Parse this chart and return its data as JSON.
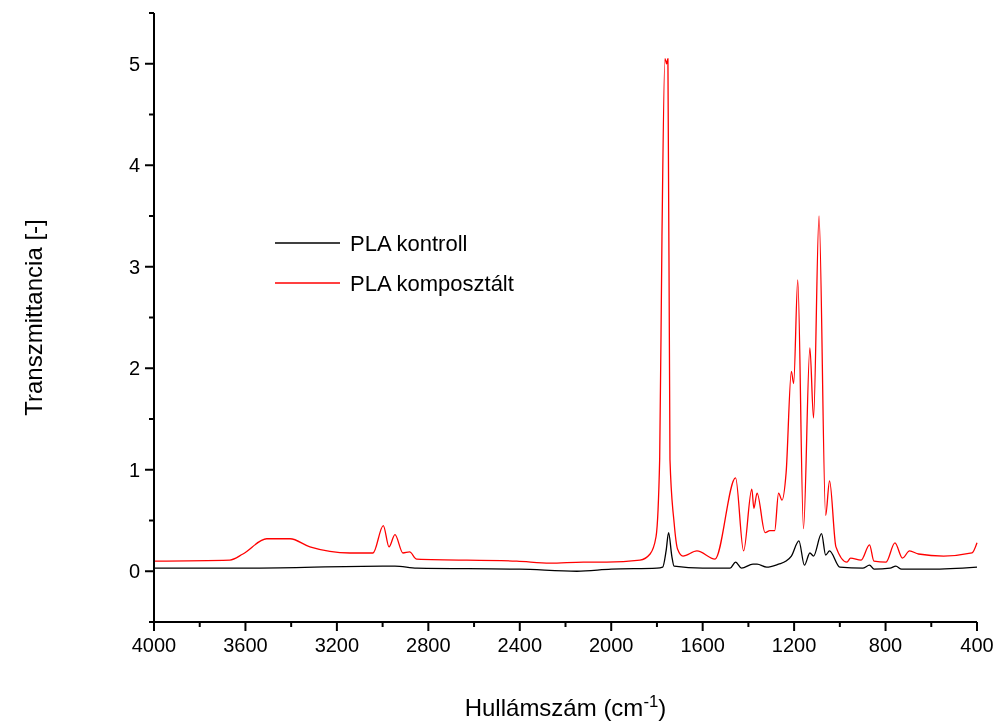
{
  "chart_data": {
    "type": "line",
    "xlabel": "Hullámszám (cm$^{-1}$)",
    "ylabel": "Transzmittancia [-]",
    "xlim": [
      4000,
      400
    ],
    "ylim": [
      -0.5,
      5.5
    ],
    "xticks": [
      4000,
      {
        "value": 3800,
        "label": null
      },
      3600,
      {
        "value": 3400,
        "label": null
      },
      3200,
      {
        "value": 3000,
        "label": null
      },
      2800,
      {
        "value": 2600,
        "label": null
      },
      2400,
      {
        "value": 2200,
        "label": null
      },
      2000,
      {
        "value": 1800,
        "label": null
      },
      1600,
      {
        "value": 1400,
        "label": null
      },
      1200,
      {
        "value": 1000,
        "label": null
      },
      800,
      {
        "value": 600,
        "label": null
      },
      400
    ],
    "yticks": [
      {
        "value": -0.5,
        "label": null
      },
      0,
      {
        "value": 0.5,
        "label": null
      },
      1,
      {
        "value": 1.5,
        "label": null
      },
      2,
      {
        "value": 2.5,
        "label": null
      },
      3,
      {
        "value": 3.5,
        "label": null
      },
      4,
      {
        "value": 4.5,
        "label": null
      },
      5,
      {
        "value": 5.5,
        "label": null
      }
    ],
    "grid": false,
    "legend": "left",
    "marker": "none",
    "line_style": "solid",
    "series": [
      {
        "name": "PLA kontroll",
        "color": "#000000",
        "x": [
          4000,
          3600,
          3000,
          2946,
          2850,
          2400,
          2150,
          2000,
          1800,
          1775,
          1760,
          1749,
          1735,
          1725,
          1600,
          1480,
          1456,
          1430,
          1380,
          1362,
          1320,
          1268,
          1235,
          1212,
          1179,
          1155,
          1131,
          1115,
          1080,
          1062,
          1045,
          1000,
          900,
          870,
          850,
          780,
          755,
          730,
          600,
          400
        ],
        "values": [
          0.03,
          0.03,
          0.05,
          0.05,
          0.03,
          0.02,
          0.0,
          0.02,
          0.03,
          0.04,
          0.2,
          0.38,
          0.15,
          0.05,
          0.03,
          0.03,
          0.09,
          0.03,
          0.07,
          0.07,
          0.04,
          0.07,
          0.1,
          0.15,
          0.3,
          0.06,
          0.18,
          0.15,
          0.37,
          0.16,
          0.2,
          0.04,
          0.03,
          0.06,
          0.02,
          0.03,
          0.05,
          0.02,
          0.02,
          0.04
        ]
      },
      {
        "name": "PLA komposztált",
        "color": "#ff0000",
        "x": [
          4000,
          3668,
          3611,
          3507,
          3405,
          3318,
          3143,
          3042,
          2997,
          2972,
          2946,
          2911,
          2882,
          2851,
          2413,
          2268,
          2122,
          2020,
          1874,
          1830,
          1804,
          1788,
          1778,
          1765,
          1758,
          1752,
          1743,
          1725,
          1710,
          1686,
          1625,
          1546,
          1456,
          1421,
          1385,
          1376,
          1362,
          1327,
          1306,
          1285,
          1268,
          1253,
          1235,
          1212,
          1202,
          1184,
          1159,
          1131,
          1115,
          1091,
          1062,
          1045,
          1017,
          969,
          953,
          907,
          870,
          851,
          798,
          759,
          726,
          695,
          656,
          546,
          422,
          400
        ],
        "values": [
          0.1,
          0.11,
          0.17,
          0.32,
          0.32,
          0.24,
          0.18,
          0.18,
          0.45,
          0.24,
          0.36,
          0.18,
          0.19,
          0.12,
          0.1,
          0.08,
          0.09,
          0.09,
          0.11,
          0.17,
          0.34,
          1.11,
          3.3,
          5.05,
          5.0,
          5.05,
          1.1,
          0.48,
          0.22,
          0.15,
          0.2,
          0.12,
          0.92,
          0.2,
          0.81,
          0.62,
          0.77,
          0.38,
          0.4,
          0.4,
          0.77,
          0.7,
          0.97,
          1.97,
          1.85,
          2.87,
          0.42,
          2.2,
          1.51,
          3.5,
          0.55,
          0.89,
          0.24,
          0.09,
          0.13,
          0.11,
          0.26,
          0.1,
          0.09,
          0.28,
          0.13,
          0.2,
          0.17,
          0.15,
          0.18,
          0.28
        ]
      }
    ]
  }
}
